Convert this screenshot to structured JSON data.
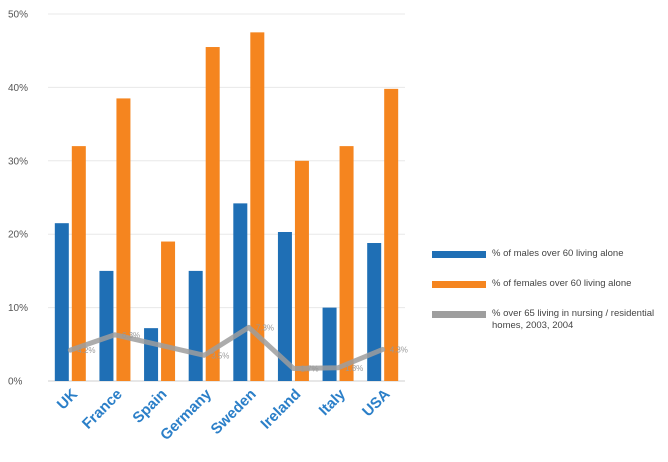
{
  "chart_data": {
    "type": "bar",
    "categories": [
      "UK",
      "France",
      "Spain",
      "Germany",
      "Sweden",
      "Ireland",
      "Italy",
      "USA"
    ],
    "series": [
      {
        "name": "% of males over 60 living alone",
        "kind": "bar",
        "color": "#1f6fb5",
        "values": [
          21.5,
          15,
          7.2,
          15,
          24.2,
          20.3,
          10,
          18.8
        ]
      },
      {
        "name": "% of females over 60 living alone",
        "kind": "bar",
        "color": "#f5851f",
        "values": [
          32,
          38.5,
          19,
          45.5,
          47.5,
          30,
          32,
          39.8
        ]
      },
      {
        "name": "% over 65 living in nursing / residential homes, 2003, 2004",
        "kind": "line",
        "color": "#9e9e9e",
        "values": [
          4.2,
          6.3,
          null,
          3.5,
          7.3,
          1.7,
          1.8,
          4.3
        ],
        "labels": [
          "4.2%",
          "6.3%",
          "",
          "3.5%",
          "7.3%",
          "1.7%",
          "1.8%",
          "4.3%"
        ]
      }
    ],
    "ylim": [
      0,
      50
    ],
    "yticks": [
      "0%",
      "10%",
      "20%",
      "30%",
      "40%",
      "50%"
    ],
    "ytick_values": [
      0,
      10,
      20,
      30,
      40,
      50
    ],
    "grid": true,
    "legend_position": "right"
  }
}
